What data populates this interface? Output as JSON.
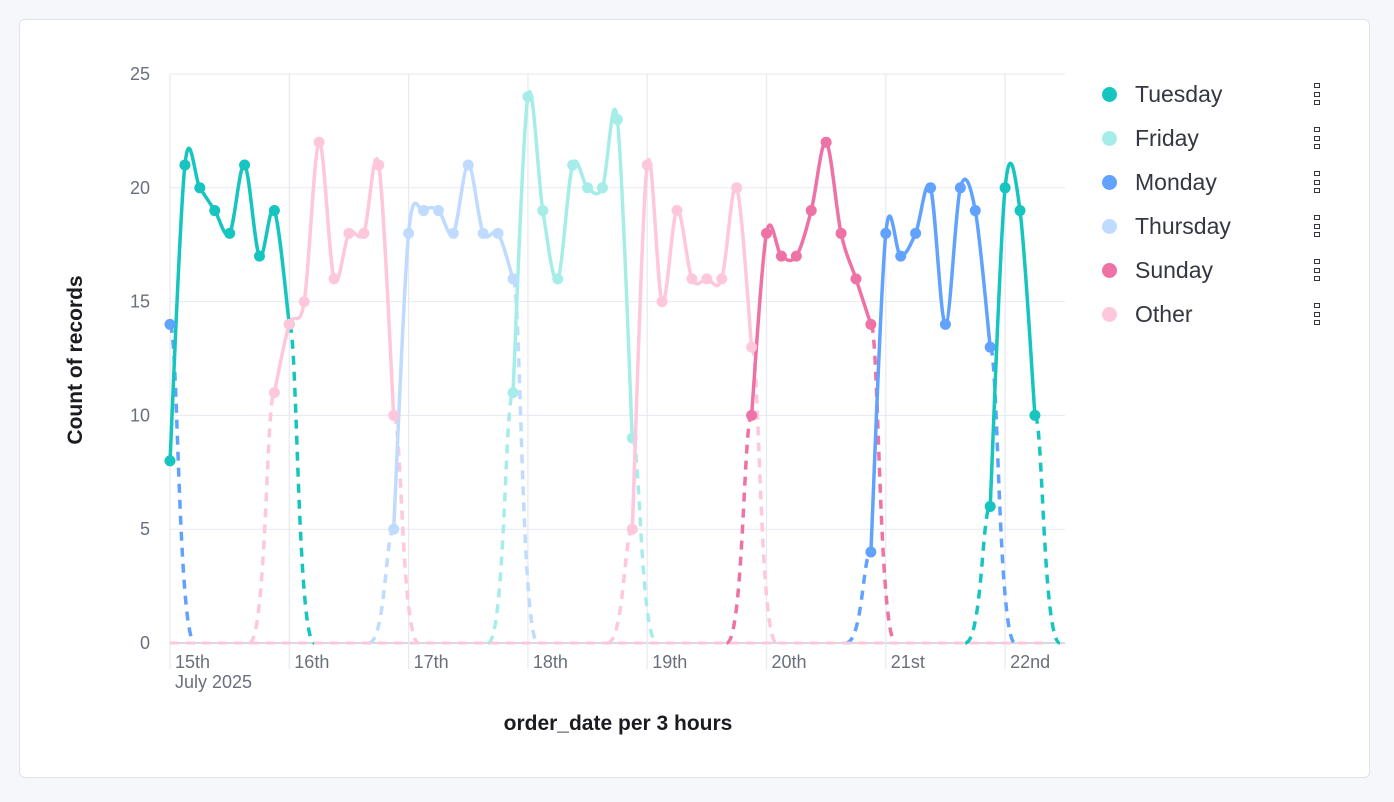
{
  "chart_data": {
    "type": "line",
    "xlabel": "order_date per 3 hours",
    "ylabel": "Count of records",
    "ylim": [
      0,
      25
    ],
    "yticks": [
      0,
      5,
      10,
      15,
      20,
      25
    ],
    "xticks": [
      {
        "label": "15th",
        "sublabel": "July 2025",
        "date": "2025-07-15"
      },
      {
        "label": "16th",
        "date": "2025-07-16"
      },
      {
        "label": "17th",
        "date": "2025-07-17"
      },
      {
        "label": "18th",
        "date": "2025-07-18"
      },
      {
        "label": "19th",
        "date": "2025-07-19"
      },
      {
        "label": "20th",
        "date": "2025-07-20"
      },
      {
        "label": "21st",
        "date": "2025-07-21"
      },
      {
        "label": "22nd",
        "date": "2025-07-22"
      }
    ],
    "x_start": "2025-07-15 00:00",
    "x_interval": "3 hours",
    "grid": true,
    "legend_position": "right",
    "series": [
      {
        "name": "Tuesday",
        "color": "#16c5c0",
        "start": "2025-07-15 00:00",
        "values": [
          8,
          21,
          20,
          19,
          18,
          21,
          17,
          19,
          14
        ]
      },
      {
        "name": "Friday",
        "color": "#a6edea",
        "start": "2025-07-17 21:00",
        "values": [
          11,
          24,
          19,
          16,
          21,
          20,
          20,
          23,
          9
        ]
      },
      {
        "name": "Monday",
        "color": "#61a2ff",
        "start": "2025-07-15 00:00",
        "values": [
          14
        ]
      },
      {
        "name": "Monday",
        "color": "#61a2ff",
        "start": "2025-07-20 21:00",
        "values": [
          4,
          18,
          17,
          18,
          20,
          14,
          20,
          19,
          13
        ]
      },
      {
        "name": "Thursday",
        "color": "#bfdbff",
        "start": "2025-07-16 21:00",
        "values": [
          5,
          18,
          19,
          19,
          18,
          21,
          18,
          18,
          16
        ]
      },
      {
        "name": "Sunday",
        "color": "#ee72a6",
        "start": "2025-07-19 21:00",
        "values": [
          10,
          18,
          17,
          17,
          19,
          22,
          18,
          16,
          14
        ]
      },
      {
        "name": "Other",
        "color": "#ffc7db",
        "start": "2025-07-15 21:00",
        "values": [
          11,
          14,
          15,
          22,
          16,
          18,
          18,
          21,
          10
        ]
      },
      {
        "name": "Other",
        "color": "#ffc7db",
        "start": "2025-07-18 21:00",
        "values": [
          5,
          21,
          15,
          19,
          16,
          16,
          16,
          20,
          13
        ]
      },
      {
        "name": "Tuesday",
        "color": "#16c5c0",
        "start": "2025-07-21 21:00",
        "values": [
          6,
          20,
          19,
          10
        ]
      }
    ]
  },
  "legend": [
    {
      "label": "Tuesday",
      "color": "#16c5c0",
      "icon": "grip-icon"
    },
    {
      "label": "Friday",
      "color": "#a6edea",
      "icon": "grip-icon"
    },
    {
      "label": "Monday",
      "color": "#61a2ff",
      "icon": "grip-icon"
    },
    {
      "label": "Thursday",
      "color": "#bfdbff",
      "icon": "grip-icon"
    },
    {
      "label": "Sunday",
      "color": "#ee72a6",
      "icon": "grip-icon"
    },
    {
      "label": "Other",
      "color": "#ffc7db",
      "icon": "grip-icon"
    }
  ]
}
